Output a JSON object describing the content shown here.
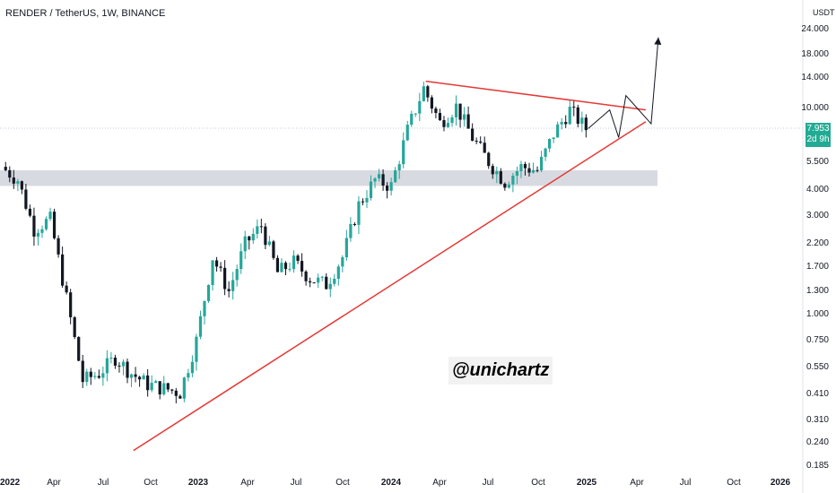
{
  "header": {
    "symbol_line": "RENDER / TetherUS, 1W, BINANCE"
  },
  "price_axis": {
    "currency": "USDT",
    "ticks": [
      "24.000",
      "18.000",
      "14.000",
      "10.000",
      "7.953",
      "5.500",
      "4.000",
      "3.000",
      "2.200",
      "1.700",
      "1.300",
      "1.000",
      "0.750",
      "0.550",
      "0.410",
      "0.310",
      "0.240",
      "0.185"
    ]
  },
  "last_price": {
    "value": "7.953",
    "countdown": "2d 9h"
  },
  "time_axis": {
    "labels": [
      "2022",
      "Apr",
      "Jul",
      "Oct",
      "2023",
      "Apr",
      "Jul",
      "Oct",
      "2024",
      "Apr",
      "Jul",
      "Oct",
      "2025",
      "Apr",
      "Jul",
      "Oct",
      "2026"
    ]
  },
  "watermark": "@unichartz",
  "colors": {
    "up": "#26a69a",
    "down": "#131722",
    "trendline": "#e53935",
    "zone": "#d1d4dc",
    "price_tag": "#22ab94"
  },
  "chart_data": {
    "type": "candlestick",
    "x_axis": "time (weekly)",
    "y_scale": "log",
    "ylim": [
      0.185,
      24
    ],
    "series": [
      {
        "points": [
          [
            "2022-01",
            5.2
          ],
          [
            "2022-02",
            4.5
          ],
          [
            "2022-03",
            2.6
          ],
          [
            "2022-04",
            2.9
          ],
          [
            "2022-05",
            1.2
          ],
          [
            "2022-06",
            0.48
          ],
          [
            "2022-07",
            0.52
          ],
          [
            "2022-08",
            0.62
          ],
          [
            "2022-09",
            0.52
          ],
          [
            "2022-10",
            0.46
          ],
          [
            "2022-11",
            0.44
          ],
          [
            "2022-12",
            0.42
          ],
          [
            "2023-01",
            0.75
          ],
          [
            "2023-02",
            1.9
          ],
          [
            "2023-03",
            1.3
          ],
          [
            "2023-04",
            2.2
          ],
          [
            "2023-05",
            2.7
          ],
          [
            "2023-06",
            1.6
          ],
          [
            "2023-07",
            1.8
          ],
          [
            "2023-08",
            1.5
          ],
          [
            "2023-09",
            1.4
          ],
          [
            "2023-10",
            1.9
          ],
          [
            "2023-11",
            3.4
          ],
          [
            "2023-12",
            4.5
          ],
          [
            "2024-01",
            4.2
          ],
          [
            "2024-02",
            7.8
          ],
          [
            "2024-03",
            12.5
          ],
          [
            "2024-04",
            8.5
          ],
          [
            "2024-05",
            10.2
          ],
          [
            "2024-06",
            7.2
          ],
          [
            "2024-07",
            5.5
          ],
          [
            "2024-08",
            4.4
          ],
          [
            "2024-09",
            5.2
          ],
          [
            "2024-10",
            5.0
          ],
          [
            "2024-11",
            7.5
          ],
          [
            "2024-12",
            9.8
          ],
          [
            "2025-01",
            7.953
          ]
        ]
      }
    ],
    "support_zone": [
      4.2,
      5.0
    ],
    "trendlines": [
      {
        "from": [
          "2022-09",
          0.22
        ],
        "to": [
          "2025-04",
          8.6
        ]
      },
      {
        "from": [
          "2024-03",
          13.5
        ],
        "to": [
          "2025-04",
          9.8
        ]
      }
    ],
    "projection": [
      [
        "2025-01",
        7.953
      ],
      [
        "2025-02",
        9.8
      ],
      [
        "2025-02",
        7.2
      ],
      [
        "2025-03",
        11.5
      ],
      [
        "2025-04",
        8.4
      ],
      [
        "2025-05",
        22
      ]
    ]
  }
}
